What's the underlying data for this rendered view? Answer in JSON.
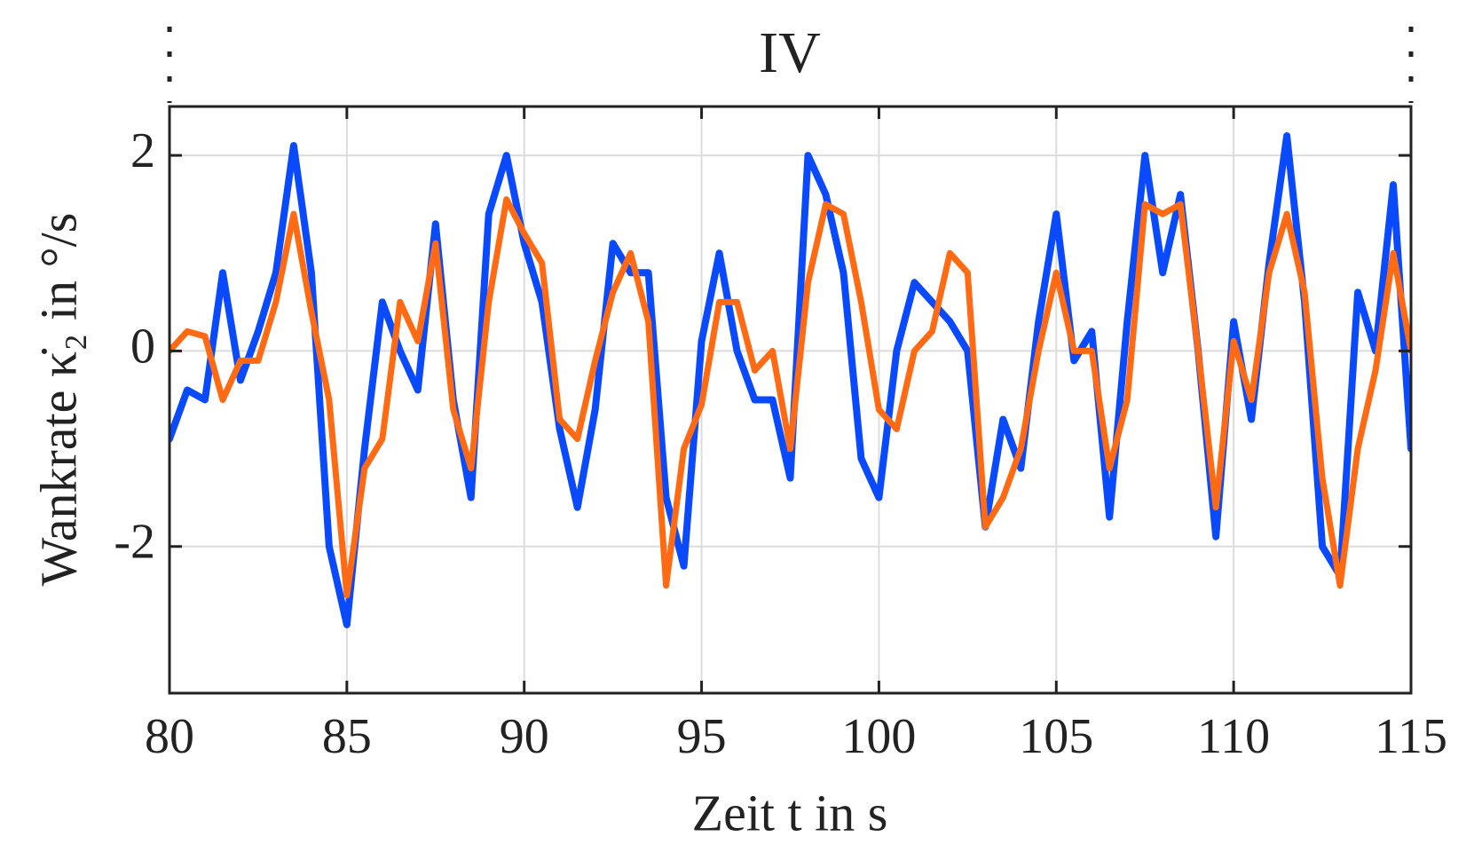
{
  "chart_data": {
    "type": "line",
    "title": "IV",
    "x_label": "Zeit t in s",
    "y_label": "Wankrate κ̇₂ in °/s",
    "x": [
      80,
      80.5,
      81,
      81.5,
      82,
      82.5,
      83,
      83.5,
      84,
      84.5,
      85,
      85.5,
      86,
      86.5,
      87,
      87.5,
      88,
      88.5,
      89,
      89.5,
      90,
      90.5,
      91,
      91.5,
      92,
      92.5,
      93,
      93.5,
      94,
      94.5,
      95,
      95.5,
      96,
      96.5,
      97,
      97.5,
      98,
      98.5,
      99,
      99.5,
      100,
      100.5,
      101,
      101.5,
      102,
      102.5,
      103,
      103.5,
      104,
      104.5,
      105,
      105.5,
      106,
      106.5,
      107,
      107.5,
      108,
      108.5,
      109,
      109.5,
      110,
      110.5,
      111,
      111.5,
      112,
      112.5,
      113,
      113.5,
      114,
      114.5,
      115
    ],
    "series": [
      {
        "color": "#0a4aff",
        "values": [
          -0.9,
          -0.4,
          -0.5,
          0.8,
          -0.3,
          0.2,
          0.8,
          2.1,
          0.8,
          -2.0,
          -2.8,
          -1.0,
          0.5,
          0.0,
          -0.4,
          1.3,
          -0.5,
          -1.5,
          1.4,
          2.0,
          1.1,
          0.5,
          -0.8,
          -1.6,
          -0.6,
          1.1,
          0.8,
          0.8,
          -1.5,
          -2.2,
          0.1,
          1.0,
          0.0,
          -0.5,
          -0.5,
          -1.3,
          2.0,
          1.6,
          0.8,
          -1.1,
          -1.5,
          0.0,
          0.7,
          0.5,
          0.3,
          0.0,
          -1.8,
          -0.7,
          -1.2,
          0.3,
          1.4,
          -0.1,
          0.2,
          -1.7,
          0.3,
          2.0,
          0.8,
          1.6,
          0.0,
          -1.9,
          0.3,
          -0.7,
          0.9,
          2.2,
          0.5,
          -2.0,
          -2.3,
          0.6,
          0.0,
          1.7,
          -1.0
        ]
      },
      {
        "color": "#ff6a13",
        "values": [
          0.0,
          0.2,
          0.15,
          -0.5,
          -0.1,
          -0.1,
          0.5,
          1.4,
          0.4,
          -0.5,
          -2.5,
          -1.2,
          -0.9,
          0.5,
          0.1,
          1.1,
          -0.6,
          -1.2,
          0.5,
          1.55,
          1.2,
          0.9,
          -0.7,
          -0.9,
          -0.1,
          0.6,
          1.0,
          0.3,
          -2.4,
          -1.0,
          -0.55,
          0.5,
          0.5,
          -0.2,
          0.0,
          -1.0,
          0.7,
          1.5,
          1.4,
          0.5,
          -0.6,
          -0.8,
          0.0,
          0.2,
          1.0,
          0.8,
          -1.8,
          -1.5,
          -1.0,
          0.0,
          0.8,
          0.0,
          0.0,
          -1.2,
          -0.5,
          1.5,
          1.4,
          1.5,
          0.0,
          -1.6,
          0.1,
          -0.5,
          0.8,
          1.4,
          0.6,
          -1.3,
          -2.4,
          -1.0,
          -0.2,
          1.0,
          0.0
        ]
      }
    ],
    "xlim": [
      80,
      115
    ],
    "xticks": [
      80,
      85,
      90,
      95,
      100,
      105,
      110,
      115
    ],
    "ylim": [
      -3.5,
      2.5
    ],
    "yticks": [
      -2,
      0,
      2
    ],
    "grid": true
  }
}
